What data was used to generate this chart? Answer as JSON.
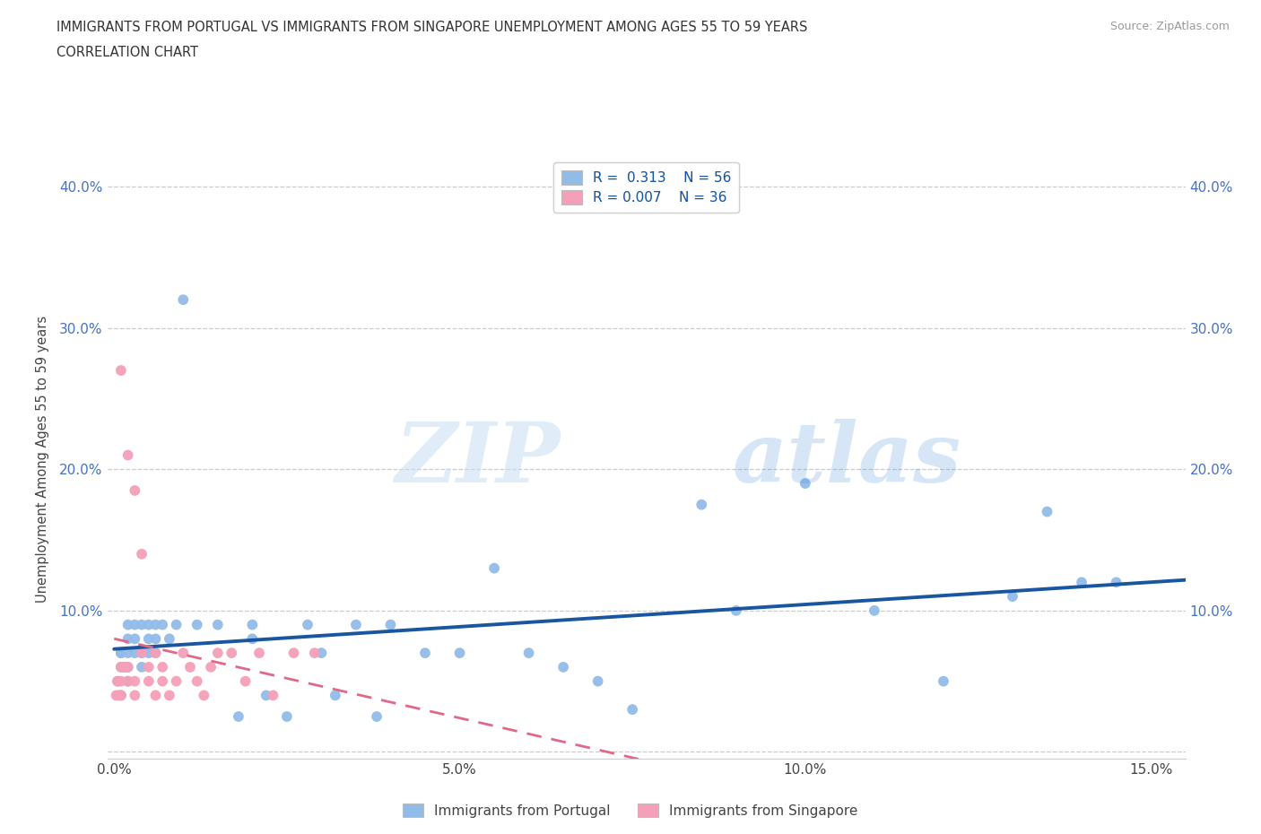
{
  "title_line1": "IMMIGRANTS FROM PORTUGAL VS IMMIGRANTS FROM SINGAPORE UNEMPLOYMENT AMONG AGES 55 TO 59 YEARS",
  "title_line2": "CORRELATION CHART",
  "source": "Source: ZipAtlas.com",
  "ylabel": "Unemployment Among Ages 55 to 59 years",
  "xlim": [
    -0.001,
    0.155
  ],
  "ylim": [
    -0.005,
    0.42
  ],
  "xtick_positions": [
    0.0,
    0.05,
    0.1,
    0.15
  ],
  "xticklabels": [
    "0.0%",
    "5.0%",
    "10.0%",
    "15.0%"
  ],
  "ytick_positions": [
    0.0,
    0.1,
    0.2,
    0.3,
    0.4
  ],
  "yticklabels_left": [
    "",
    "10.0%",
    "20.0%",
    "30.0%",
    "40.0%"
  ],
  "yticklabels_right": [
    "",
    "10.0%",
    "20.0%",
    "30.0%",
    "40.0%"
  ],
  "portugal_color": "#92bce8",
  "singapore_color": "#f5a0b8",
  "portugal_R": "0.313",
  "portugal_N": "56",
  "singapore_R": "0.007",
  "singapore_N": "36",
  "trend_portugal_color": "#1a56a0",
  "trend_singapore_color": "#e06888",
  "watermark_zip": "ZIP",
  "watermark_atlas": "atlas",
  "portugal_x": [
    0.0005,
    0.001,
    0.001,
    0.001,
    0.001,
    0.0015,
    0.002,
    0.002,
    0.002,
    0.002,
    0.002,
    0.003,
    0.003,
    0.003,
    0.004,
    0.004,
    0.004,
    0.005,
    0.005,
    0.005,
    0.006,
    0.006,
    0.006,
    0.007,
    0.008,
    0.009,
    0.01,
    0.012,
    0.015,
    0.018,
    0.02,
    0.02,
    0.022,
    0.025,
    0.028,
    0.03,
    0.032,
    0.035,
    0.038,
    0.04,
    0.045,
    0.05,
    0.055,
    0.06,
    0.065,
    0.07,
    0.075,
    0.085,
    0.09,
    0.1,
    0.11,
    0.12,
    0.13,
    0.135,
    0.14,
    0.145
  ],
  "portugal_y": [
    0.05,
    0.06,
    0.07,
    0.04,
    0.07,
    0.06,
    0.05,
    0.07,
    0.08,
    0.06,
    0.09,
    0.07,
    0.08,
    0.09,
    0.06,
    0.07,
    0.09,
    0.07,
    0.08,
    0.09,
    0.08,
    0.09,
    0.07,
    0.09,
    0.08,
    0.09,
    0.32,
    0.09,
    0.09,
    0.025,
    0.08,
    0.09,
    0.04,
    0.025,
    0.09,
    0.07,
    0.04,
    0.09,
    0.025,
    0.09,
    0.07,
    0.07,
    0.13,
    0.07,
    0.06,
    0.05,
    0.03,
    0.175,
    0.1,
    0.19,
    0.1,
    0.05,
    0.11,
    0.17,
    0.12,
    0.12
  ],
  "singapore_x": [
    0.0003,
    0.0005,
    0.0007,
    0.001,
    0.001,
    0.001,
    0.001,
    0.0015,
    0.002,
    0.002,
    0.002,
    0.003,
    0.003,
    0.003,
    0.004,
    0.004,
    0.005,
    0.005,
    0.006,
    0.006,
    0.007,
    0.007,
    0.008,
    0.009,
    0.01,
    0.011,
    0.012,
    0.013,
    0.014,
    0.015,
    0.017,
    0.019,
    0.021,
    0.023,
    0.026,
    0.029
  ],
  "singapore_y": [
    0.04,
    0.05,
    0.04,
    0.06,
    0.27,
    0.05,
    0.04,
    0.06,
    0.05,
    0.21,
    0.06,
    0.04,
    0.185,
    0.05,
    0.14,
    0.07,
    0.06,
    0.05,
    0.07,
    0.04,
    0.05,
    0.06,
    0.04,
    0.05,
    0.07,
    0.06,
    0.05,
    0.04,
    0.06,
    0.07,
    0.07,
    0.05,
    0.07,
    0.04,
    0.07,
    0.07
  ]
}
